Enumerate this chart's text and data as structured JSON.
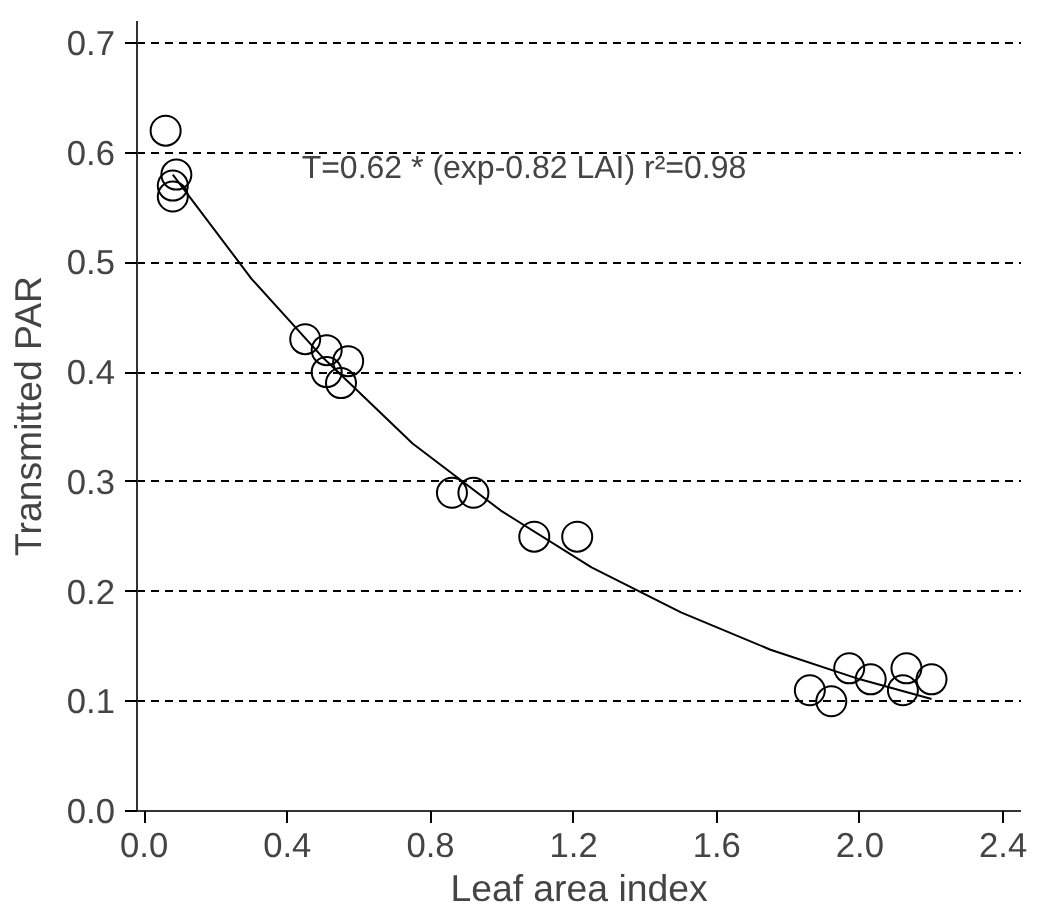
{
  "chart_data": {
    "type": "scatter",
    "xlabel": "Leaf area index",
    "ylabel": "Transmitted PAR",
    "grid": "y",
    "xlim": [
      -0.02,
      2.45
    ],
    "ylim": [
      0,
      0.72
    ],
    "xticks": [
      {
        "value": 0,
        "label": "0.0"
      },
      {
        "value": 0.4,
        "label": "0.4"
      },
      {
        "value": 0.8,
        "label": "0.8"
      },
      {
        "value": 1.2,
        "label": "1.2"
      },
      {
        "value": 1.6,
        "label": "1.6"
      },
      {
        "value": 2.0,
        "label": "2.0"
      },
      {
        "value": 2.4,
        "label": "2.4"
      }
    ],
    "yticks": [
      {
        "value": 0,
        "label": "0.0"
      },
      {
        "value": 0.1,
        "label": "0.1"
      },
      {
        "value": 0.2,
        "label": "0.2"
      },
      {
        "value": 0.3,
        "label": "0.3"
      },
      {
        "value": 0.4,
        "label": "0.4"
      },
      {
        "value": 0.5,
        "label": "0.5"
      },
      {
        "value": 0.6,
        "label": "0.6"
      },
      {
        "value": 0.7,
        "label": "0.7"
      }
    ],
    "annotations": [
      "T=0.62 * (exp-0.82 LAI)  r²=0.98"
    ],
    "series": [
      {
        "marker": "circle",
        "color": "#000000",
        "x": [
          0.06,
          0.09,
          0.08,
          0.08,
          0.45,
          0.51,
          0.51,
          0.55,
          0.57,
          0.86,
          0.92,
          1.09,
          1.21,
          1.86,
          1.92,
          1.97,
          2.03,
          2.12,
          2.13,
          2.2
        ],
        "values": [
          0.62,
          0.58,
          0.57,
          0.56,
          0.43,
          0.42,
          0.4,
          0.39,
          0.41,
          0.29,
          0.29,
          0.25,
          0.25,
          0.11,
          0.1,
          0.13,
          0.12,
          0.11,
          0.13,
          0.12
        ]
      },
      {
        "type": "line",
        "marker": "none",
        "color": "#000000",
        "x": [
          0.08,
          0.3,
          0.5,
          0.75,
          1.0,
          1.25,
          1.5,
          1.75,
          2.0,
          2.2
        ],
        "values": [
          0.58,
          0.485,
          0.413,
          0.335,
          0.273,
          0.222,
          0.181,
          0.147,
          0.12,
          0.102
        ]
      }
    ]
  }
}
